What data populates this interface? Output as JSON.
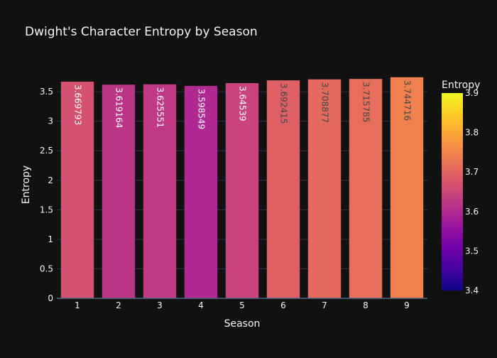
{
  "chart_data": {
    "type": "bar",
    "title": "Dwight's Character Entropy by Season",
    "xlabel": "Season",
    "ylabel": "Entropy",
    "categories": [
      "1",
      "2",
      "3",
      "4",
      "5",
      "6",
      "7",
      "8",
      "9"
    ],
    "values": [
      3.669793,
      3.619164,
      3.625551,
      3.598549,
      3.64539,
      3.692415,
      3.708877,
      3.715785,
      3.744716
    ],
    "value_labels": [
      "3.669793",
      "3.619164",
      "3.625551",
      "3.598549",
      "3.64539",
      "3.692415",
      "3.708877",
      "3.715785",
      "3.744716"
    ],
    "ylim": [
      0,
      3.85
    ],
    "yticks": [
      0,
      0.5,
      1,
      1.5,
      2,
      2.5,
      3,
      3.5
    ],
    "ytick_labels": [
      "0",
      "0.5",
      "1",
      "1.5",
      "2",
      "2.5",
      "3",
      "3.5"
    ],
    "grid": true,
    "colorbar": {
      "title": "Entropy",
      "range": [
        3.4,
        3.9
      ],
      "ticks": [
        3.4,
        3.5,
        3.6,
        3.7,
        3.8,
        3.9
      ],
      "tick_labels": [
        "3.4",
        "3.5",
        "3.6",
        "3.7",
        "3.8",
        "3.9"
      ],
      "colorscale": [
        "#0d0887",
        "#46039f",
        "#7201a8",
        "#9c179e",
        "#bd3786",
        "#d8576b",
        "#ed7953",
        "#fb9f3a",
        "#fdca26",
        "#f0f921"
      ]
    }
  },
  "colors": {
    "background": "#111111",
    "text": "#f2f5fa",
    "grid": "#283442",
    "axis_line": "#506784",
    "label_dark": "#444444",
    "label_light": "#ffffff"
  }
}
